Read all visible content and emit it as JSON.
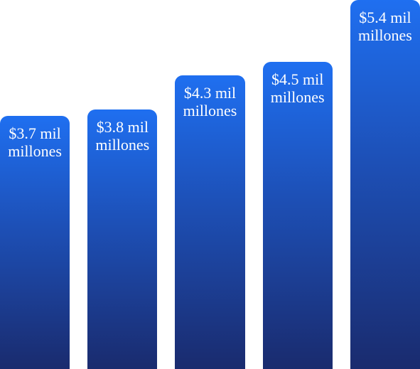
{
  "chart_data": {
    "type": "bar",
    "categories": [
      null,
      null,
      null,
      null,
      null
    ],
    "values": [
      3.7,
      3.8,
      4.3,
      4.5,
      5.4
    ],
    "value_labels": [
      "$3.7 mil millones",
      "$3.8 mil millones",
      "$4.3 mil millones",
      "$4.5 mil millones",
      "$5.4 mil millones"
    ],
    "color": "#1d4fb5"
  }
}
